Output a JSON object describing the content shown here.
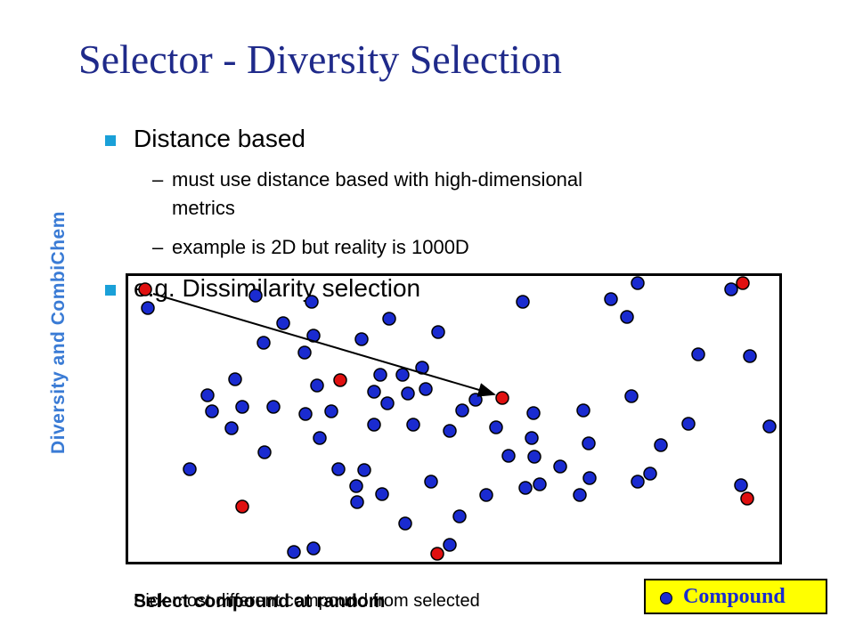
{
  "slide": {
    "title": "Selector - Diversity Selection",
    "side_label": "Diversity and CombiChem",
    "bullet1": "Distance based",
    "sub1_line1": "must use distance based with high-dimensional",
    "sub1_line2": "metrics",
    "sub2": "example is 2D but reality is 1000D",
    "bullet2": "e.g. Dissimilarity selection",
    "dash": "–"
  },
  "captions": {
    "caption1": "Pick most different compound from selected",
    "caption2": "Select compound at random"
  },
  "legend": {
    "label": "Compound"
  },
  "colors": {
    "compound": "#1a2bd0",
    "selected": "#e01010",
    "arrow": "#000000"
  },
  "compounds_blue": [
    [
      166,
      346
    ],
    [
      287,
      332
    ],
    [
      350,
      339
    ],
    [
      318,
      363
    ],
    [
      296,
      385
    ],
    [
      352,
      377
    ],
    [
      406,
      381
    ],
    [
      342,
      396
    ],
    [
      437,
      358
    ],
    [
      492,
      373
    ],
    [
      587,
      339
    ],
    [
      686,
      336
    ],
    [
      716,
      318
    ],
    [
      704,
      356
    ],
    [
      821,
      325
    ],
    [
      784,
      398
    ],
    [
      842,
      400
    ],
    [
      264,
      426
    ],
    [
      233,
      444
    ],
    [
      238,
      462
    ],
    [
      272,
      457
    ],
    [
      260,
      481
    ],
    [
      307,
      457
    ],
    [
      356,
      433
    ],
    [
      343,
      465
    ],
    [
      372,
      462
    ],
    [
      359,
      492
    ],
    [
      427,
      421
    ],
    [
      452,
      421
    ],
    [
      474,
      413
    ],
    [
      420,
      440
    ],
    [
      435,
      453
    ],
    [
      458,
      442
    ],
    [
      478,
      437
    ],
    [
      420,
      477
    ],
    [
      464,
      477
    ],
    [
      505,
      484
    ],
    [
      519,
      461
    ],
    [
      534,
      449
    ],
    [
      557,
      480
    ],
    [
      599,
      464
    ],
    [
      597,
      492
    ],
    [
      571,
      512
    ],
    [
      600,
      513
    ],
    [
      655,
      461
    ],
    [
      661,
      498
    ],
    [
      629,
      524
    ],
    [
      709,
      445
    ],
    [
      742,
      500
    ],
    [
      773,
      476
    ],
    [
      864,
      479
    ],
    [
      213,
      527
    ],
    [
      297,
      508
    ],
    [
      380,
      527
    ],
    [
      409,
      528
    ],
    [
      400,
      546
    ],
    [
      429,
      555
    ],
    [
      401,
      564
    ],
    [
      484,
      541
    ],
    [
      546,
      556
    ],
    [
      590,
      548
    ],
    [
      606,
      544
    ],
    [
      651,
      556
    ],
    [
      662,
      537
    ],
    [
      716,
      541
    ],
    [
      730,
      532
    ],
    [
      832,
      545
    ],
    [
      455,
      588
    ],
    [
      516,
      580
    ],
    [
      505,
      612
    ],
    [
      330,
      620
    ],
    [
      352,
      616
    ]
  ],
  "compounds_red": [
    [
      163,
      325
    ],
    [
      382,
      427
    ],
    [
      564,
      447
    ],
    [
      834,
      318
    ],
    [
      839,
      560
    ],
    [
      272,
      569
    ],
    [
      491,
      622
    ]
  ],
  "arrow": {
    "from": [
      172,
      330
    ],
    "to": [
      555,
      443
    ]
  }
}
